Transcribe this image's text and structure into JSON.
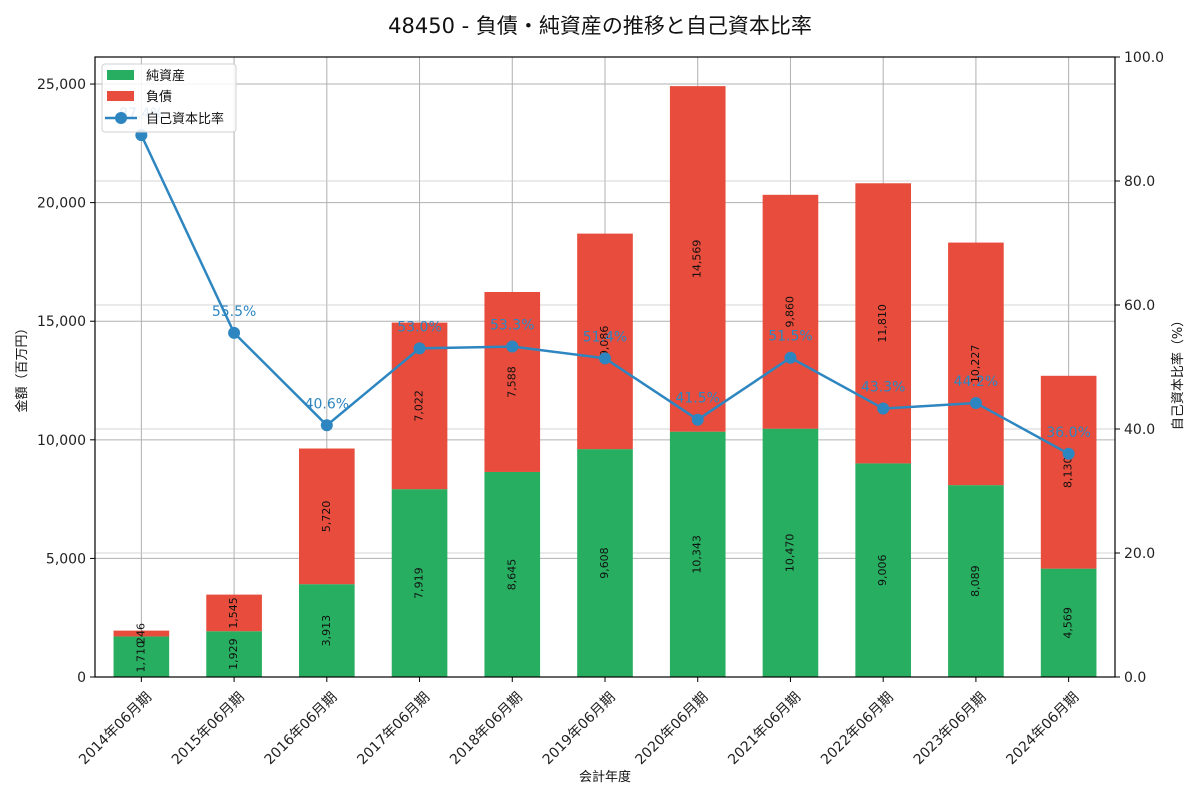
{
  "chart_data": {
    "type": "bar",
    "subtype": "stacked bar + line (dual axis)",
    "title": "48450 - 負債・純資産の推移と自己資本比率",
    "xlabel": "会計年度",
    "ylabel": "金額（百万円）",
    "y2label": "自己資本比率（%）",
    "categories": [
      "2014年06月期",
      "2015年06月期",
      "2016年06月期",
      "2017年06月期",
      "2018年06月期",
      "2019年06月期",
      "2020年06月期",
      "2021年06月期",
      "2022年06月期",
      "2023年06月期",
      "2024年06月期"
    ],
    "series": [
      {
        "name": "純資産",
        "type": "bar",
        "axis": "left",
        "color": "#27ae60",
        "values": [
          1710,
          1929,
          3913,
          7919,
          8645,
          9608,
          10343,
          10470,
          9006,
          8089,
          4569
        ]
      },
      {
        "name": "負債",
        "type": "bar",
        "axis": "left",
        "color": "#e74c3c",
        "values": [
          246,
          1545,
          5720,
          7022,
          7588,
          9086,
          14569,
          9860,
          11810,
          10227,
          8130
        ]
      },
      {
        "name": "自己資本比率",
        "type": "line",
        "axis": "right",
        "color": "#2e86c1",
        "values": [
          87.4,
          55.5,
          40.6,
          53.0,
          53.3,
          51.4,
          41.5,
          51.5,
          43.3,
          44.2,
          36.0
        ]
      }
    ],
    "ylim": [
      0,
      26140
    ],
    "yticks": [
      0,
      5000,
      10000,
      15000,
      20000,
      25000
    ],
    "ytick_labels": [
      "0",
      "5,000",
      "10,000",
      "15,000",
      "20,000",
      "25,000"
    ],
    "y2lim": [
      0,
      100
    ],
    "y2ticks": [
      0,
      20,
      40,
      60,
      80,
      100
    ],
    "y2tick_labels": [
      "0.0",
      "20.0",
      "40.0",
      "60.0",
      "80.0",
      "100.0"
    ],
    "grid": true,
    "legend_position": "upper left",
    "legend": [
      "純資産",
      "負債",
      "自己資本比率"
    ]
  }
}
